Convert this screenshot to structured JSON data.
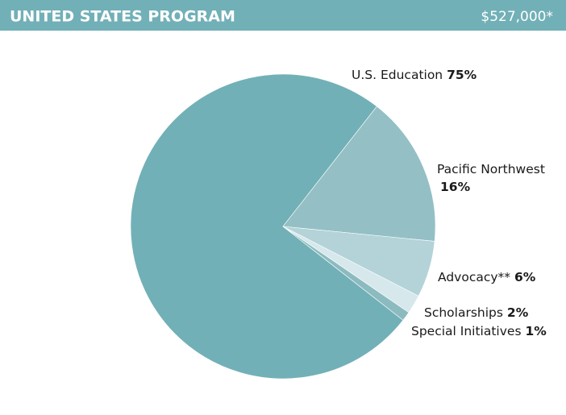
{
  "chart_data": {
    "type": "pie",
    "title": "UNITED STATES PROGRAM",
    "total": "$527,000*",
    "categories": [
      "U.S. Education",
      "Pacific Northwest",
      "Advocacy**",
      "Scholarships",
      "Special Initiatives"
    ],
    "values": [
      75,
      16,
      6,
      2,
      1
    ],
    "value_labels": [
      "75%",
      "16%",
      "6%",
      "2%",
      "1%"
    ],
    "colors": [
      "#72b0b7",
      "#94bfc5",
      "#b3d3d8",
      "#d6e8eb",
      "#8cbbbf"
    ],
    "header_color": "#72b0b7"
  }
}
